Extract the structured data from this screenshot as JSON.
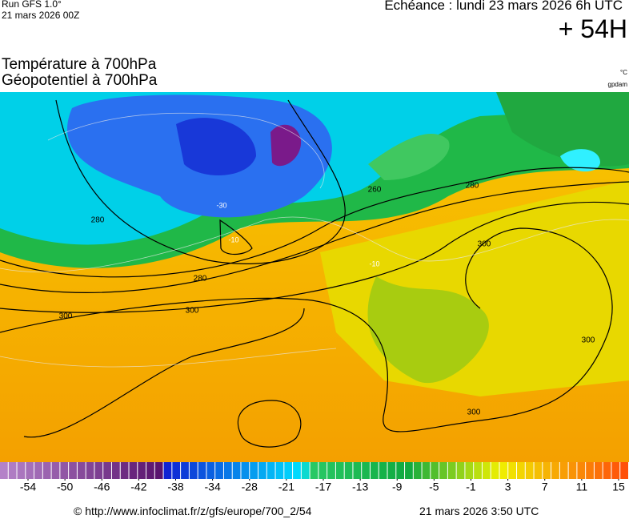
{
  "header": {
    "run": "Run GFS 1.0°",
    "date": "21 mars 2026 00Z",
    "echeance": "Echéance : lundi 23 mars 2026 6h UTC",
    "lead": "+ 54H",
    "title1": "Température à 700hPa",
    "title2": "Géopotentiel à 700hPa",
    "unit1": "°C",
    "unit2": "gpdam"
  },
  "map": {
    "contour_labels": [
      "280",
      "260",
      "280",
      "280",
      "300",
      "300",
      "300",
      "300",
      "300"
    ],
    "temp_labels": [
      "-10",
      "-30",
      "-10"
    ]
  },
  "colorbar": {
    "ticks": [
      -54,
      -50,
      -46,
      -42,
      -38,
      -34,
      -28,
      -21,
      -17,
      -13,
      -9,
      -5,
      -1,
      3,
      7,
      11,
      15
    ]
  },
  "footer": {
    "url": "© http://www.infoclimat.fr/z/gfs/europe/700_2/54",
    "time": "21 mars 2026  3:50 UTC"
  }
}
